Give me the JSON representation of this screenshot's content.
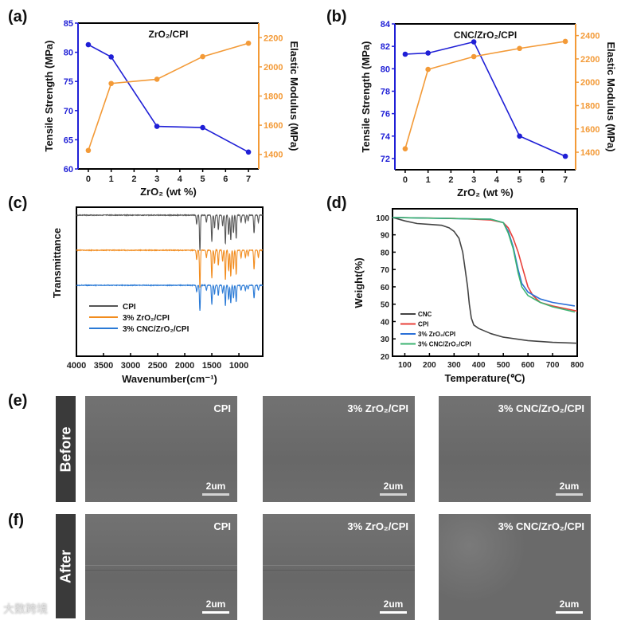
{
  "panel_labels": [
    "(a)",
    "(b)",
    "(c)",
    "(d)",
    "(e)",
    "(f)"
  ],
  "chart_data": [
    {
      "type": "line",
      "title": "ZrO₂/CPI",
      "xlabel": "ZrO₂ (wt %)",
      "ylabel": "Tensile Strength (MPa)",
      "y2label": "Elastic Modulus (MPa)",
      "x": [
        0,
        1,
        3,
        5,
        7
      ],
      "xlim": [
        -0.45,
        7.45
      ],
      "x_ticks": [
        "0",
        "1",
        "2",
        "3",
        "4",
        "5",
        "6",
        "7"
      ],
      "ylim": [
        60,
        85
      ],
      "y_ticks": [
        "60",
        "65",
        "70",
        "75",
        "80",
        "85"
      ],
      "y2lim": [
        1300,
        2300
      ],
      "y2_ticks": [
        "1400",
        "1600",
        "1800",
        "2000",
        "2200"
      ],
      "series": [
        {
          "name": "Tensile Strength",
          "axis": "left",
          "color": "#1f1fd6",
          "values": [
            81.3,
            79.2,
            67.3,
            67.1,
            62.9
          ]
        },
        {
          "name": "Elastic Modulus",
          "axis": "right",
          "color": "#f39a37",
          "values": [
            1427,
            1886,
            1915,
            2070,
            2162
          ]
        }
      ]
    },
    {
      "type": "line",
      "title": "CNC/ZrO₂/CPI",
      "xlabel": "ZrO₂ (wt %)",
      "ylabel": "Tensile Strength (MPa)",
      "y2label": "Elastic Modulus (MPa)",
      "x": [
        0,
        1,
        3,
        5,
        7
      ],
      "xlim": [
        -0.45,
        7.45
      ],
      "x_ticks": [
        "0",
        "1",
        "2",
        "3",
        "4",
        "5",
        "6",
        "7"
      ],
      "ylim": [
        71,
        84
      ],
      "y_ticks": [
        "72",
        "74",
        "76",
        "78",
        "80",
        "82",
        "84"
      ],
      "y2lim": [
        1250,
        2500
      ],
      "y2_ticks": [
        "1400",
        "1600",
        "1800",
        "2000",
        "2200",
        "2400"
      ],
      "series": [
        {
          "name": "Tensile Strength",
          "axis": "left",
          "color": "#1f1fd6",
          "values": [
            81.3,
            81.4,
            82.4,
            74.0,
            72.2
          ]
        },
        {
          "name": "Elastic Modulus",
          "axis": "right",
          "color": "#f39a37",
          "values": [
            1430,
            2110,
            2220,
            2290,
            2350
          ]
        }
      ]
    },
    {
      "type": "line",
      "xlabel": "Wavenumber(cm⁻¹)",
      "ylabel": "Transmittance",
      "xlim": [
        4000,
        560
      ],
      "x_ticks": [
        "4000",
        "3500",
        "3000",
        "2500",
        "2000",
        "1500",
        "1000"
      ],
      "legend": "center-left",
      "peaks": [
        [
          1780,
          0.25
        ],
        [
          1720,
          1.0
        ],
        [
          1600,
          0.2
        ],
        [
          1500,
          0.75
        ],
        [
          1450,
          0.35
        ],
        [
          1380,
          0.4
        ],
        [
          1300,
          0.3
        ],
        [
          1250,
          0.8
        ],
        [
          1190,
          0.55
        ],
        [
          1150,
          0.7
        ],
        [
          1100,
          0.5
        ],
        [
          1050,
          0.65
        ],
        [
          960,
          0.2
        ],
        [
          880,
          0.2
        ],
        [
          830,
          0.15
        ],
        [
          720,
          0.5
        ],
        [
          640,
          0.2
        ]
      ],
      "series": [
        {
          "name": "CPI",
          "color": "#555555"
        },
        {
          "name": "3% ZrO₂/CPI",
          "color": "#f28c1e"
        },
        {
          "name": "3% CNC/ZrO₂/CPI",
          "color": "#2a7ad6"
        }
      ]
    },
    {
      "type": "line",
      "xlabel": "Temperature(℃)",
      "ylabel": "Weight(%)",
      "xlim": [
        50,
        800
      ],
      "x_ticks": [
        "100",
        "200",
        "300",
        "400",
        "500",
        "600",
        "700",
        "800"
      ],
      "ylim": [
        20,
        105
      ],
      "y_ticks": [
        "20",
        "30",
        "40",
        "50",
        "60",
        "70",
        "80",
        "90",
        "100"
      ],
      "legend": "bottom-left",
      "series": [
        {
          "name": "CNC",
          "color": "#444444",
          "points": [
            [
              50,
              100
            ],
            [
              100,
              98
            ],
            [
              150,
              96.5
            ],
            [
              200,
              96
            ],
            [
              250,
              95.5
            ],
            [
              280,
              94
            ],
            [
              300,
              92
            ],
            [
              320,
              88
            ],
            [
              335,
              80
            ],
            [
              345,
              70
            ],
            [
              355,
              60
            ],
            [
              362,
              50
            ],
            [
              370,
              42
            ],
            [
              380,
              38
            ],
            [
              400,
              36
            ],
            [
              450,
              33
            ],
            [
              500,
              31
            ],
            [
              600,
              29
            ],
            [
              700,
              28
            ],
            [
              800,
              27.5
            ]
          ]
        },
        {
          "name": "CPI",
          "color": "#e8403a",
          "points": [
            [
              50,
              100
            ],
            [
              300,
              99.5
            ],
            [
              450,
              98.5
            ],
            [
              500,
              97
            ],
            [
              520,
              94
            ],
            [
              540,
              88
            ],
            [
              560,
              80
            ],
            [
              580,
              70
            ],
            [
              600,
              60
            ],
            [
              620,
              55
            ],
            [
              650,
              51
            ],
            [
              700,
              49
            ],
            [
              800,
              46
            ]
          ]
        },
        {
          "name": "3% ZrO₂/CPI",
          "color": "#2a6fd8",
          "points": [
            [
              50,
              100
            ],
            [
              450,
              99
            ],
            [
              500,
              97
            ],
            [
              520,
              92
            ],
            [
              540,
              83
            ],
            [
              560,
              70
            ],
            [
              575,
              62
            ],
            [
              600,
              57
            ],
            [
              650,
              53
            ],
            [
              700,
              51
            ],
            [
              790,
              49
            ]
          ]
        },
        {
          "name": "3% CNC/ZrO₂/CPI",
          "color": "#3cb371",
          "points": [
            [
              50,
              100
            ],
            [
              450,
              99
            ],
            [
              500,
              97
            ],
            [
              520,
              91
            ],
            [
              540,
              82
            ],
            [
              560,
              68
            ],
            [
              575,
              60
            ],
            [
              600,
              55
            ],
            [
              650,
              51
            ],
            [
              700,
              48.5
            ],
            [
              790,
              45.5
            ]
          ]
        }
      ]
    }
  ],
  "sem": {
    "rows": [
      {
        "tag": "Before",
        "panels": [
          {
            "name": "CPI",
            "scale": "2um"
          },
          {
            "name": "3% ZrO₂/CPI",
            "scale": "2um"
          },
          {
            "name": "3% CNC/ZrO₂/CPI",
            "scale": "2um"
          }
        ]
      },
      {
        "tag": "After",
        "panels": [
          {
            "name": "CPI",
            "scale": "2um"
          },
          {
            "name": "3% ZrO₂/CPI",
            "scale": "2um"
          },
          {
            "name": "3% CNC/ZrO₂/CPI",
            "scale": "2um"
          }
        ]
      }
    ]
  },
  "watermark": "大数跨境"
}
